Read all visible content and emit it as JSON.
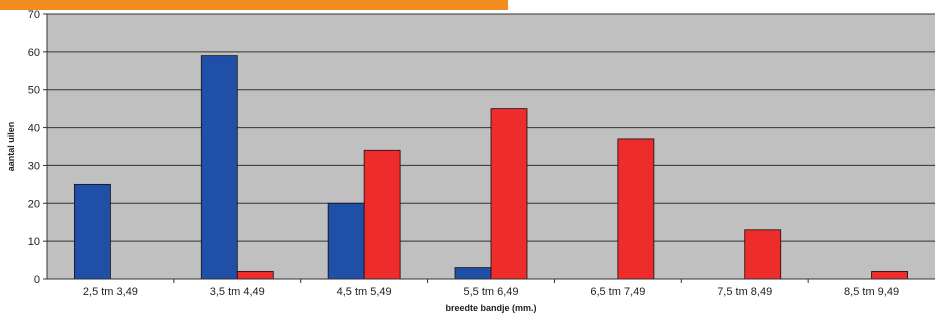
{
  "chart_data": {
    "type": "bar",
    "categories": [
      "2,5 tm 3,49",
      "3,5 tm 4,49",
      "4,5 tm 5,49",
      "5,5 tm 6,49",
      "6,5 tm 7,49",
      "7,5 tm 8,49",
      "8,5 tm 9,49"
    ],
    "series": [
      {
        "values": [
          25,
          59,
          20,
          3,
          0,
          0,
          0
        ],
        "color": "#1f4fa6"
      },
      {
        "values": [
          0,
          2,
          34,
          45,
          37,
          13,
          2
        ],
        "color": "#ee2c2c"
      }
    ],
    "xlabel": "breedte bandje (mm.)",
    "ylabel": "aantal uilen",
    "ylim": [
      0,
      70
    ],
    "yticks": [
      0,
      10,
      20,
      30,
      40,
      50,
      60,
      70
    ],
    "grid": true,
    "plot_background": "#c0c0c0",
    "accent_color": "#f28c1c"
  }
}
